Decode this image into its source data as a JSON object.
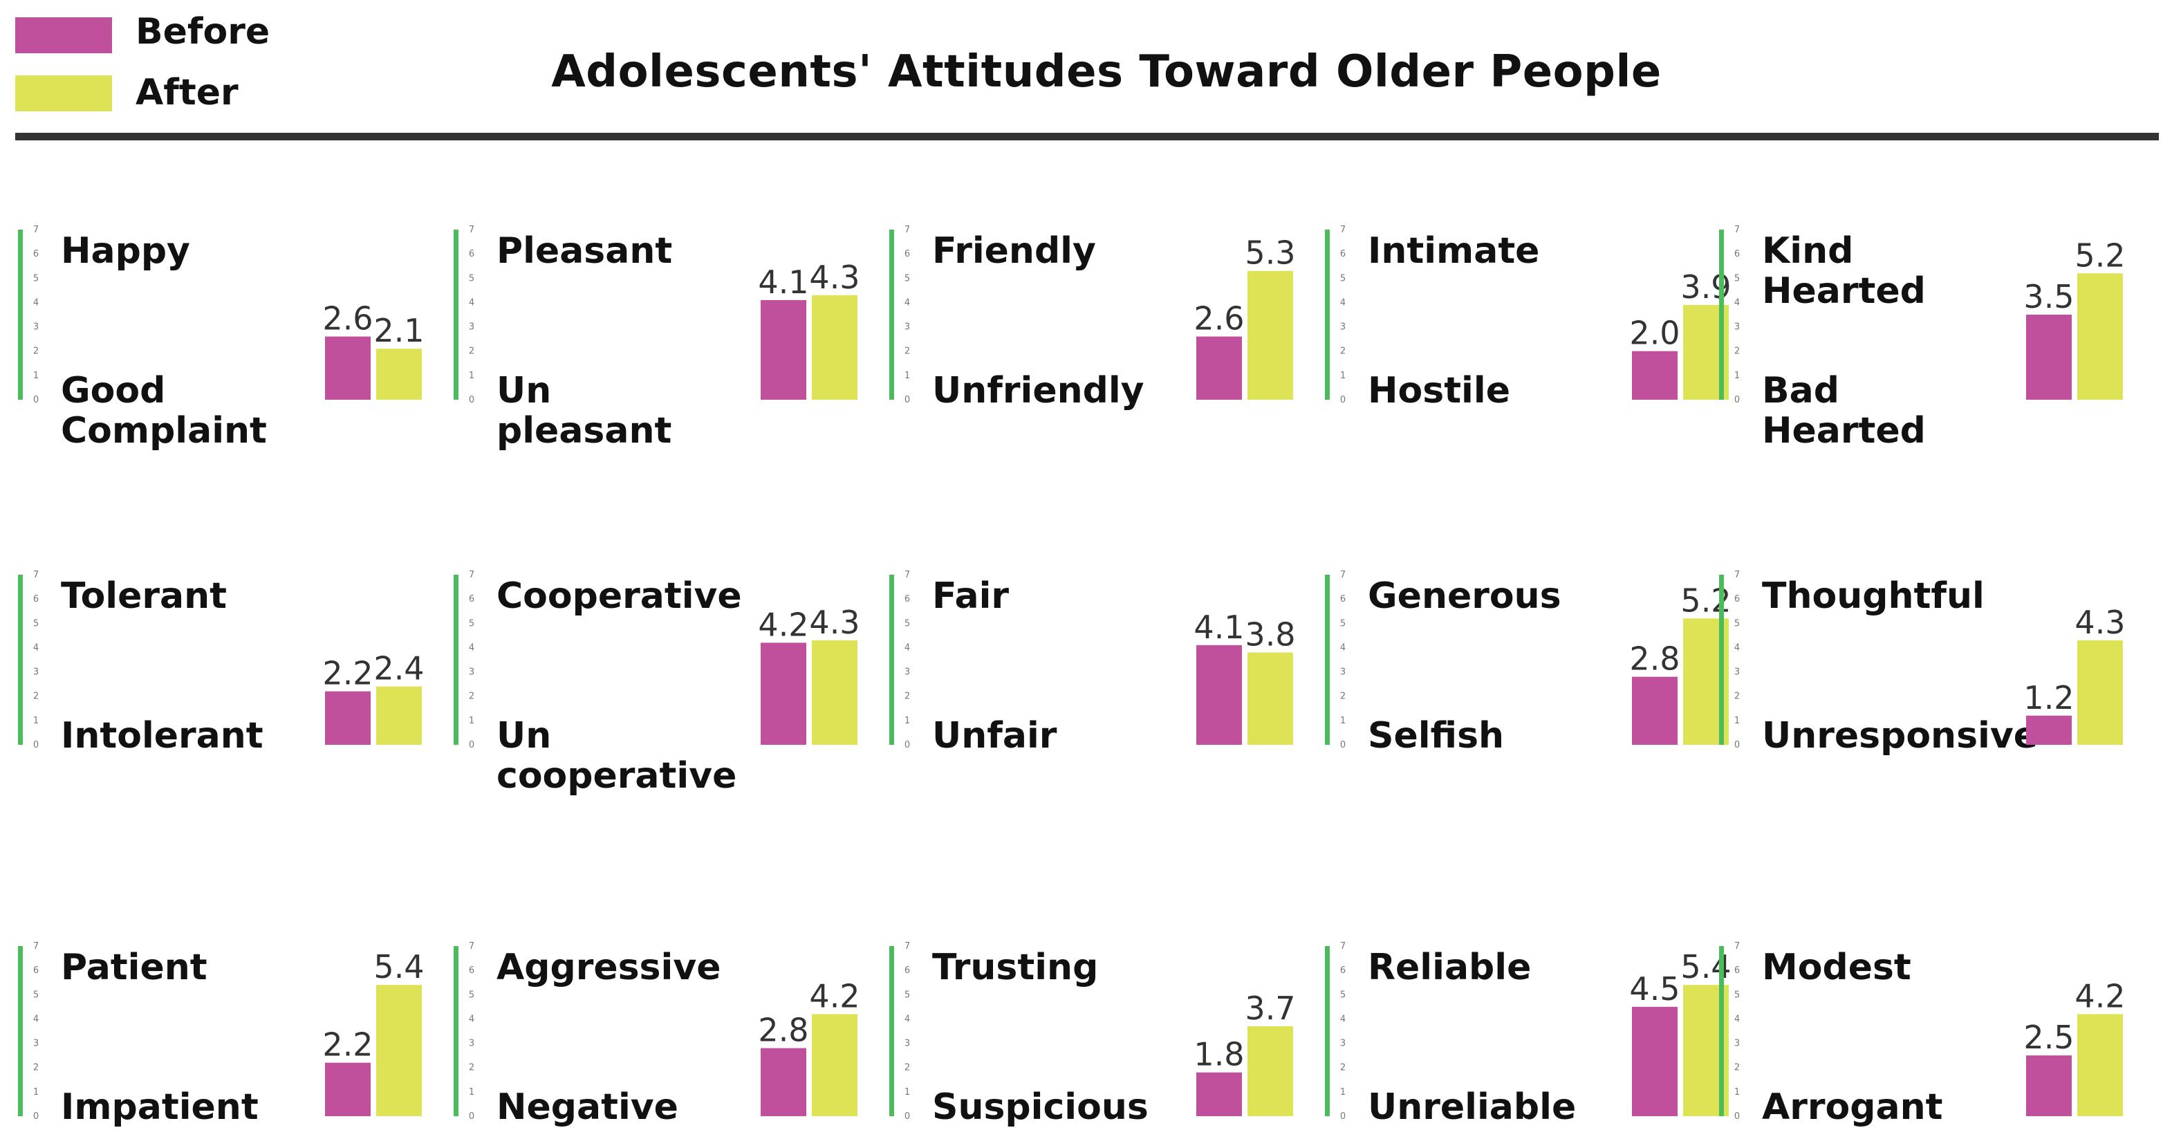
{
  "legend": {
    "before_label": "Before",
    "after_label": "After",
    "before_color": "#c0509c",
    "after_color": "#dde354"
  },
  "title": "Adolescents' Attitudes Toward Older People",
  "colors": {
    "axis": "#4cbb5c",
    "divider": "#333333"
  },
  "chart_data": {
    "type": "bar",
    "title": "Adolescents' Attitudes Toward Older People",
    "ylim": [
      0,
      7
    ],
    "yticks": [
      "0",
      "1",
      "2",
      "3",
      "4",
      "5",
      "6",
      "7"
    ],
    "series_names": [
      "Before",
      "After"
    ],
    "panels": [
      {
        "top_label": [
          "Happy"
        ],
        "bottom_label": [
          "Good",
          "Complaint"
        ],
        "before": 2.6,
        "after": 2.1
      },
      {
        "top_label": [
          "Pleasant"
        ],
        "bottom_label": [
          "Un",
          "pleasant"
        ],
        "before": 4.1,
        "after": 4.3
      },
      {
        "top_label": [
          "Friendly"
        ],
        "bottom_label": [
          "Unfriendly"
        ],
        "before": 2.6,
        "after": 5.3
      },
      {
        "top_label": [
          "Intimate"
        ],
        "bottom_label": [
          "Hostile"
        ],
        "before": 2.0,
        "after": 3.9
      },
      {
        "top_label": [
          "Kind",
          "Hearted"
        ],
        "bottom_label": [
          "Bad",
          "Hearted"
        ],
        "before": 3.5,
        "after": 5.2
      },
      {
        "top_label": [
          "Tolerant"
        ],
        "bottom_label": [
          "Intolerant"
        ],
        "before": 2.2,
        "after": 2.4
      },
      {
        "top_label": [
          "Cooperative"
        ],
        "bottom_label": [
          "Un",
          "cooperative"
        ],
        "before": 4.2,
        "after": 4.3
      },
      {
        "top_label": [
          "Fair"
        ],
        "bottom_label": [
          "Unfair"
        ],
        "before": 4.1,
        "after": 3.8
      },
      {
        "top_label": [
          "Generous"
        ],
        "bottom_label": [
          "Selfish"
        ],
        "before": 2.8,
        "after": 5.2
      },
      {
        "top_label": [
          "Thoughtful"
        ],
        "bottom_label": [
          "Unresponsive"
        ],
        "before": 1.2,
        "after": 4.3
      },
      {
        "top_label": [
          "Patient"
        ],
        "bottom_label": [
          "Impatient"
        ],
        "before": 2.2,
        "after": 5.4
      },
      {
        "top_label": [
          "Aggressive"
        ],
        "bottom_label": [
          "Negative"
        ],
        "before": 2.8,
        "after": 4.2
      },
      {
        "top_label": [
          "Trusting"
        ],
        "bottom_label": [
          "Suspicious"
        ],
        "before": 1.8,
        "after": 3.7
      },
      {
        "top_label": [
          "Reliable"
        ],
        "bottom_label": [
          "Unreliable"
        ],
        "before": 4.5,
        "after": 5.4
      },
      {
        "top_label": [
          "Modest"
        ],
        "bottom_label": [
          "Arrogant"
        ],
        "before": 2.5,
        "after": 4.2
      }
    ]
  }
}
